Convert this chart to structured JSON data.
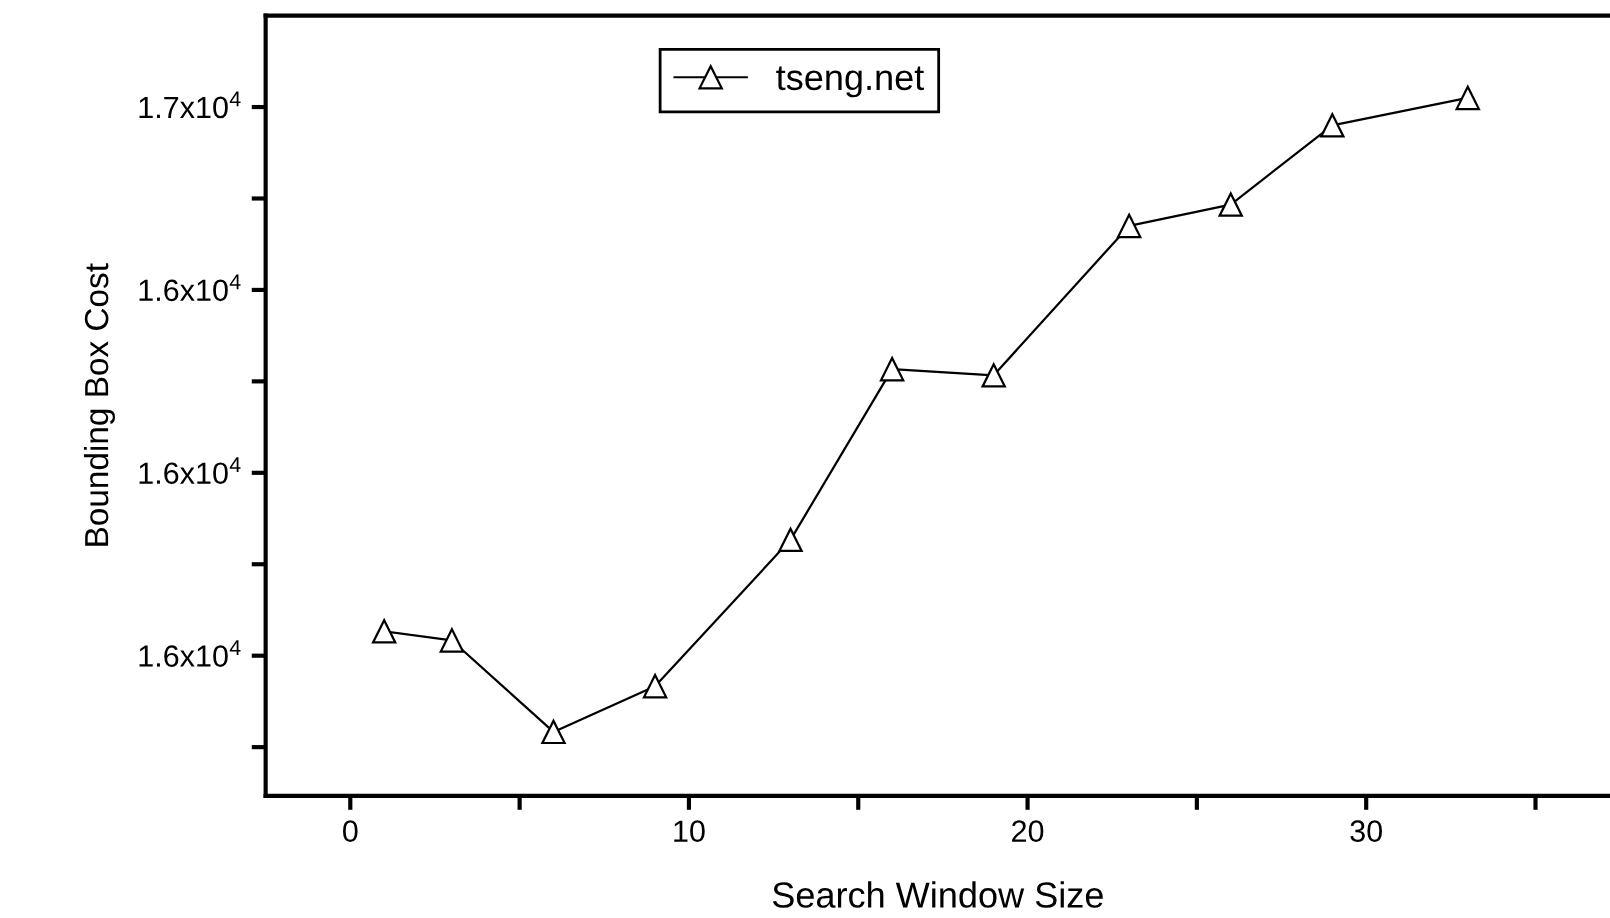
{
  "chart_data": {
    "type": "line",
    "xlabel": "Search Window Size",
    "ylabel": "Bounding Box Cost",
    "x": [
      1,
      3,
      6,
      9,
      13,
      16,
      19,
      23,
      26,
      29,
      33
    ],
    "series": [
      {
        "name": "tseng.net",
        "color": "#000000",
        "values": [
          15740,
          15725,
          15575,
          15650,
          15890,
          16170,
          16160,
          16405,
          16440,
          16570,
          16615
        ]
      }
    ],
    "xlim": [
      -2.5,
      37.2
    ],
    "ylim": [
      15470,
      16750
    ],
    "xticks": [
      0,
      {
        "value": 5,
        "label": null
      },
      10,
      {
        "value": 15,
        "label": null
      },
      20,
      {
        "value": 25,
        "label": null
      },
      30,
      {
        "value": 35,
        "label": null
      }
    ],
    "yticks": [
      {
        "value": 15550,
        "label": null
      },
      {
        "value": 15700,
        "label": "1.6x10$^{4}$"
      },
      {
        "value": 15850,
        "label": null
      },
      {
        "value": 16000,
        "label": "1.6x10$^{4}$"
      },
      {
        "value": 16150,
        "label": null
      },
      {
        "value": 16300,
        "label": "1.6x10$^{4}$"
      },
      {
        "value": 16450,
        "label": null
      },
      {
        "value": 16600,
        "label": "1.7x10$^{4}$"
      }
    ],
    "marker": "triangle",
    "line_style": "solid",
    "grid": false,
    "legend": "top"
  }
}
